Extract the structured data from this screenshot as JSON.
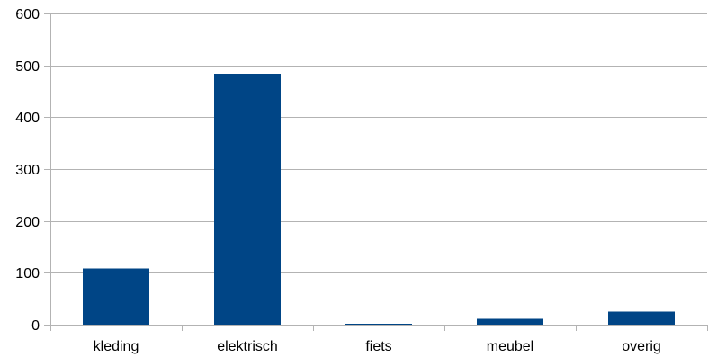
{
  "chart_data": {
    "type": "bar",
    "title": "",
    "xlabel": "",
    "ylabel": "",
    "categories": [
      "kleding",
      "elektrisch",
      "fiets",
      "meubel",
      "overig"
    ],
    "values": [
      108,
      484,
      2,
      11,
      25
    ],
    "ylim": [
      0,
      600
    ],
    "yticks": [
      0,
      100,
      200,
      300,
      400,
      500,
      600
    ],
    "grid": true,
    "legend": "none",
    "bar_color": "#004586"
  }
}
